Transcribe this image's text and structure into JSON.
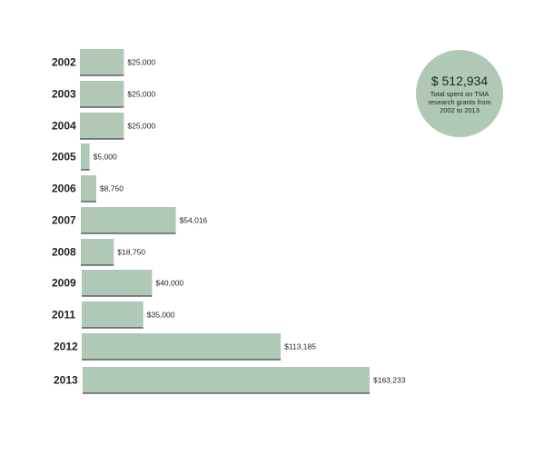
{
  "summary": {
    "amount": "$ 512,934",
    "caption": "Total spent on TMA research grants from 2002 to 2013"
  },
  "colors": {
    "bar": "#b0c9b6",
    "bar_base": "#3d4a44",
    "summary_circle": "#b0c9b6"
  },
  "chart_data": {
    "type": "bar",
    "orientation": "horizontal",
    "title": "",
    "xlabel": "",
    "ylabel": "",
    "categories": [
      "2002",
      "2003",
      "2004",
      "2005",
      "2006",
      "2007",
      "2008",
      "2009",
      "2011",
      "2012",
      "2013"
    ],
    "values": [
      25000,
      25000,
      25000,
      5000,
      8750,
      54016,
      18750,
      40000,
      35000,
      113185,
      163233
    ],
    "value_labels": [
      "$25,000",
      "$25,000",
      "$25,000",
      "$5,000",
      "$8,750",
      "$54,016",
      "$18,750",
      "$40,000",
      "$35,000",
      "$113,185",
      "$163,233"
    ],
    "grid": false,
    "legend": "none"
  }
}
